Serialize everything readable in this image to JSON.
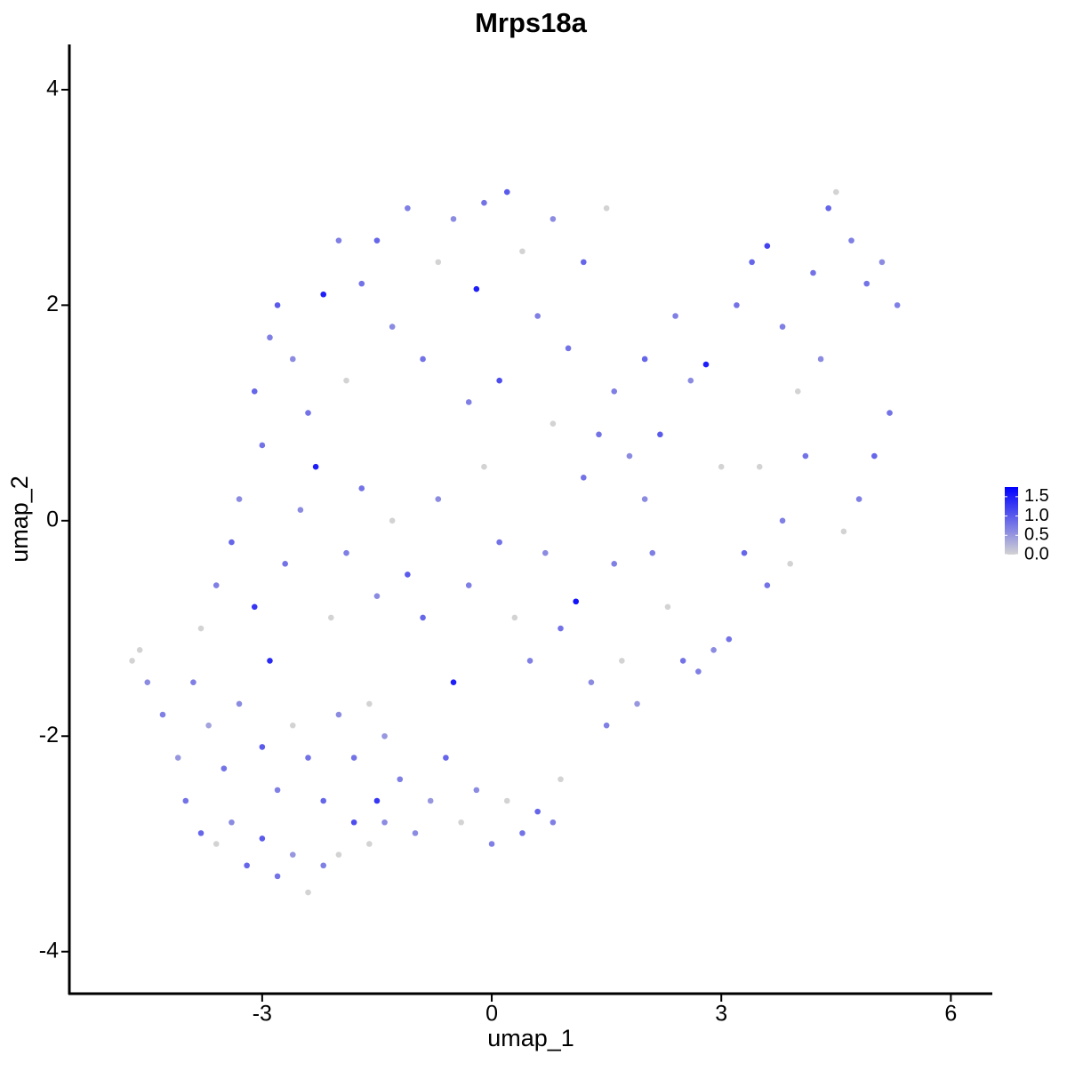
{
  "chart_data": {
    "type": "scatter",
    "title": "Mrps18a",
    "x_label": "umap_1",
    "y_label": "umap_2",
    "xlim": [
      -5.52,
      6.53
    ],
    "ylim": [
      -4.39,
      4.42
    ],
    "xticks": [
      -3,
      0,
      3,
      6
    ],
    "yticks": [
      -4,
      -2,
      0,
      2,
      4
    ],
    "color_low": "#d3d3d3",
    "color_high": "#0000ff",
    "colorlim": [
      0,
      1.75
    ],
    "colorbar_ticks": [
      {
        "value": 0,
        "label": "0.0"
      },
      0.5,
      {
        "value": 1,
        "label": "1.0"
      },
      1.5
    ],
    "x": [
      -4.7,
      -4.6,
      -4.5,
      -4.3,
      -4.1,
      -4.0,
      -3.8,
      -3.6,
      -3.4,
      -3.2,
      -3.0,
      -2.8,
      -2.6,
      -2.4,
      -2.2,
      -2.0,
      -1.8,
      -1.6,
      -1.5,
      -1.4,
      -3.9,
      -3.7,
      -3.5,
      -3.3,
      -3.0,
      -2.8,
      -2.6,
      -2.4,
      -2.2,
      -2.0,
      -1.8,
      -1.6,
      -1.4,
      -1.2,
      -1.0,
      -0.8,
      -0.6,
      -0.4,
      -0.2,
      0.0,
      0.2,
      0.4,
      0.6,
      0.8,
      0.9,
      -3.8,
      -3.6,
      -3.4,
      -3.3,
      -3.1,
      -2.9,
      -2.7,
      -2.5,
      -2.3,
      -2.1,
      -1.9,
      -1.7,
      -1.5,
      -1.3,
      -1.1,
      -0.9,
      -0.7,
      -0.5,
      -0.3,
      -0.1,
      0.1,
      0.3,
      0.5,
      0.7,
      0.9,
      1.1,
      1.3,
      1.5,
      1.7,
      1.9,
      -3.0,
      -3.1,
      -2.9,
      -2.8,
      -2.6,
      -2.4,
      -2.2,
      -2.0,
      -1.9,
      -1.7,
      -1.5,
      -1.3,
      -1.1,
      -0.9,
      -0.7,
      -0.5,
      -0.3,
      -0.2,
      -0.1,
      0.1,
      0.2,
      0.4,
      0.6,
      0.8,
      1.0,
      1.2,
      1.5,
      1.4,
      1.6,
      1.8,
      2.0,
      2.2,
      2.4,
      2.6,
      2.8,
      3.0,
      3.2,
      3.4,
      3.6,
      3.8,
      4.0,
      4.2,
      4.4,
      4.5,
      4.7,
      4.9,
      5.1,
      5.3,
      5.2,
      5.0,
      4.8,
      4.6,
      4.3,
      4.1,
      3.8,
      3.5,
      3.3,
      3.1,
      2.9,
      2.7,
      2.5,
      2.3,
      2.1,
      3.6,
      3.9,
      2.0,
      1.6,
      1.2,
      0.8
    ],
    "y": [
      -1.3,
      -1.2,
      -1.5,
      -1.8,
      -2.2,
      -2.6,
      -2.9,
      -3.0,
      -2.8,
      -3.2,
      -2.95,
      -3.3,
      -3.1,
      -3.45,
      -3.2,
      -3.1,
      -2.8,
      -3.0,
      -2.6,
      -2.8,
      -1.5,
      -1.9,
      -2.3,
      -1.7,
      -2.1,
      -2.5,
      -1.9,
      -2.2,
      -2.6,
      -1.8,
      -2.2,
      -1.7,
      -2.0,
      -2.4,
      -2.9,
      -2.6,
      -2.2,
      -2.8,
      -2.5,
      -3.0,
      -2.6,
      -2.9,
      -2.7,
      -2.8,
      -2.4,
      -1.0,
      -0.6,
      -0.2,
      0.2,
      -0.8,
      -1.3,
      -0.4,
      0.1,
      0.5,
      -0.9,
      -0.3,
      0.3,
      -0.7,
      0.0,
      -0.5,
      -0.9,
      0.2,
      -1.5,
      -0.6,
      0.5,
      -0.2,
      -0.9,
      -1.3,
      -0.3,
      -1.0,
      -0.75,
      -1.5,
      -1.9,
      -1.3,
      -1.7,
      0.7,
      1.2,
      1.7,
      2.0,
      1.5,
      1.0,
      2.1,
      2.6,
      1.3,
      2.2,
      2.6,
      1.8,
      2.9,
      1.5,
      2.4,
      2.8,
      1.1,
      2.15,
      2.95,
      1.3,
      3.05,
      2.5,
      1.9,
      2.8,
      1.6,
      2.4,
      2.9,
      0.8,
      1.2,
      0.6,
      1.5,
      0.8,
      1.9,
      1.3,
      1.45,
      0.5,
      2.0,
      2.4,
      2.55,
      1.8,
      1.2,
      2.3,
      2.9,
      3.05,
      2.6,
      2.2,
      2.4,
      2.0,
      1.0,
      0.6,
      0.2,
      -0.1,
      1.5,
      0.6,
      0.0,
      0.5,
      -0.3,
      -1.1,
      -1.2,
      -1.4,
      -1.3,
      -0.8,
      -0.3,
      -0.6,
      -0.4,
      0.2,
      -0.4,
      0.4,
      0.9
    ],
    "values": [
      0,
      0,
      0.6,
      0.7,
      0.5,
      0.8,
      0.9,
      0,
      0.6,
      0.9,
      1.0,
      0.8,
      0.5,
      0,
      0.7,
      0,
      1.1,
      0,
      1.3,
      0.6,
      0.7,
      0.4,
      0.8,
      0.6,
      1.0,
      0.7,
      0,
      0.8,
      0.9,
      0.6,
      0.8,
      0,
      0.5,
      0.7,
      0.6,
      0.5,
      0.9,
      0,
      0.6,
      0.7,
      0,
      0.8,
      0.9,
      0.7,
      0,
      0,
      0.7,
      0.9,
      0.6,
      1.3,
      1.4,
      0.8,
      0.6,
      1.5,
      0,
      0.7,
      0.8,
      0.6,
      0,
      1.0,
      0.9,
      0.6,
      1.5,
      0.7,
      0,
      0.8,
      0,
      0.7,
      0.6,
      0.8,
      1.6,
      0.6,
      0.7,
      0,
      0.5,
      0.8,
      0.9,
      0.7,
      1.0,
      0.6,
      0.8,
      1.5,
      0.7,
      0,
      0.8,
      0.9,
      0.6,
      0.7,
      0.8,
      0,
      0.6,
      0.7,
      1.5,
      0.8,
      1.1,
      1.0,
      0,
      0.7,
      0.6,
      0.8,
      0.9,
      0,
      0.8,
      0.7,
      0.6,
      0.9,
      1.0,
      0.7,
      0.6,
      1.5,
      0,
      0.8,
      0.9,
      1.2,
      0.7,
      0,
      0.8,
      0.9,
      0,
      0.7,
      0.8,
      0.6,
      0.7,
      0.8,
      0.9,
      0.7,
      0,
      0.6,
      0.8,
      0.7,
      0,
      0.9,
      0.8,
      0.6,
      0.7,
      0.8,
      0,
      0.7,
      0.8,
      0,
      0.6,
      0.7,
      0.8,
      0
    ]
  }
}
